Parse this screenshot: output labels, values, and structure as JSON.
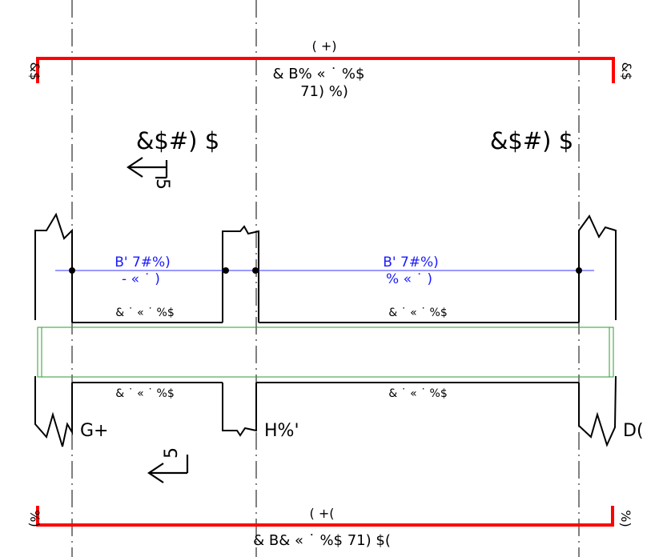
{
  "top_dim": {
    "label": "( +)",
    "sublabel1": "&  B%  «  ˙ %$",
    "sublabel2": "71) %)",
    "end_left": "&$",
    "end_right": "&$"
  },
  "bottom_dim": {
    "label": "( +(",
    "sublabel": "&  B&  «  ˙ %$   71) $(",
    "end_left": "%)",
    "end_right": "%)"
  },
  "room_labels": {
    "left": "&$#) $",
    "right": "&$#) $"
  },
  "section_markers": {
    "top": "5",
    "bottom": "5"
  },
  "beam_labels": {
    "left_line1": "B'    7#%)",
    "left_line2": "-    « ˙ )",
    "right_line1": "B'    7#%)",
    "right_line2": "%    « ˙ )"
  },
  "slab_labels": {
    "top_left": "& ˙ « ˙ %$",
    "top_right": "& ˙ « ˙ %$",
    "bottom_left": "& ˙ « ˙ %$",
    "bottom_right": "& ˙ « ˙ %$"
  },
  "axis_labels": {
    "left": "G+",
    "middle": "H%'",
    "right": "D("
  },
  "colors": {
    "dimension": "#ff0000",
    "beam_axis": "#3333ff",
    "slab": "#2e9e2e",
    "ink": "#000000"
  }
}
